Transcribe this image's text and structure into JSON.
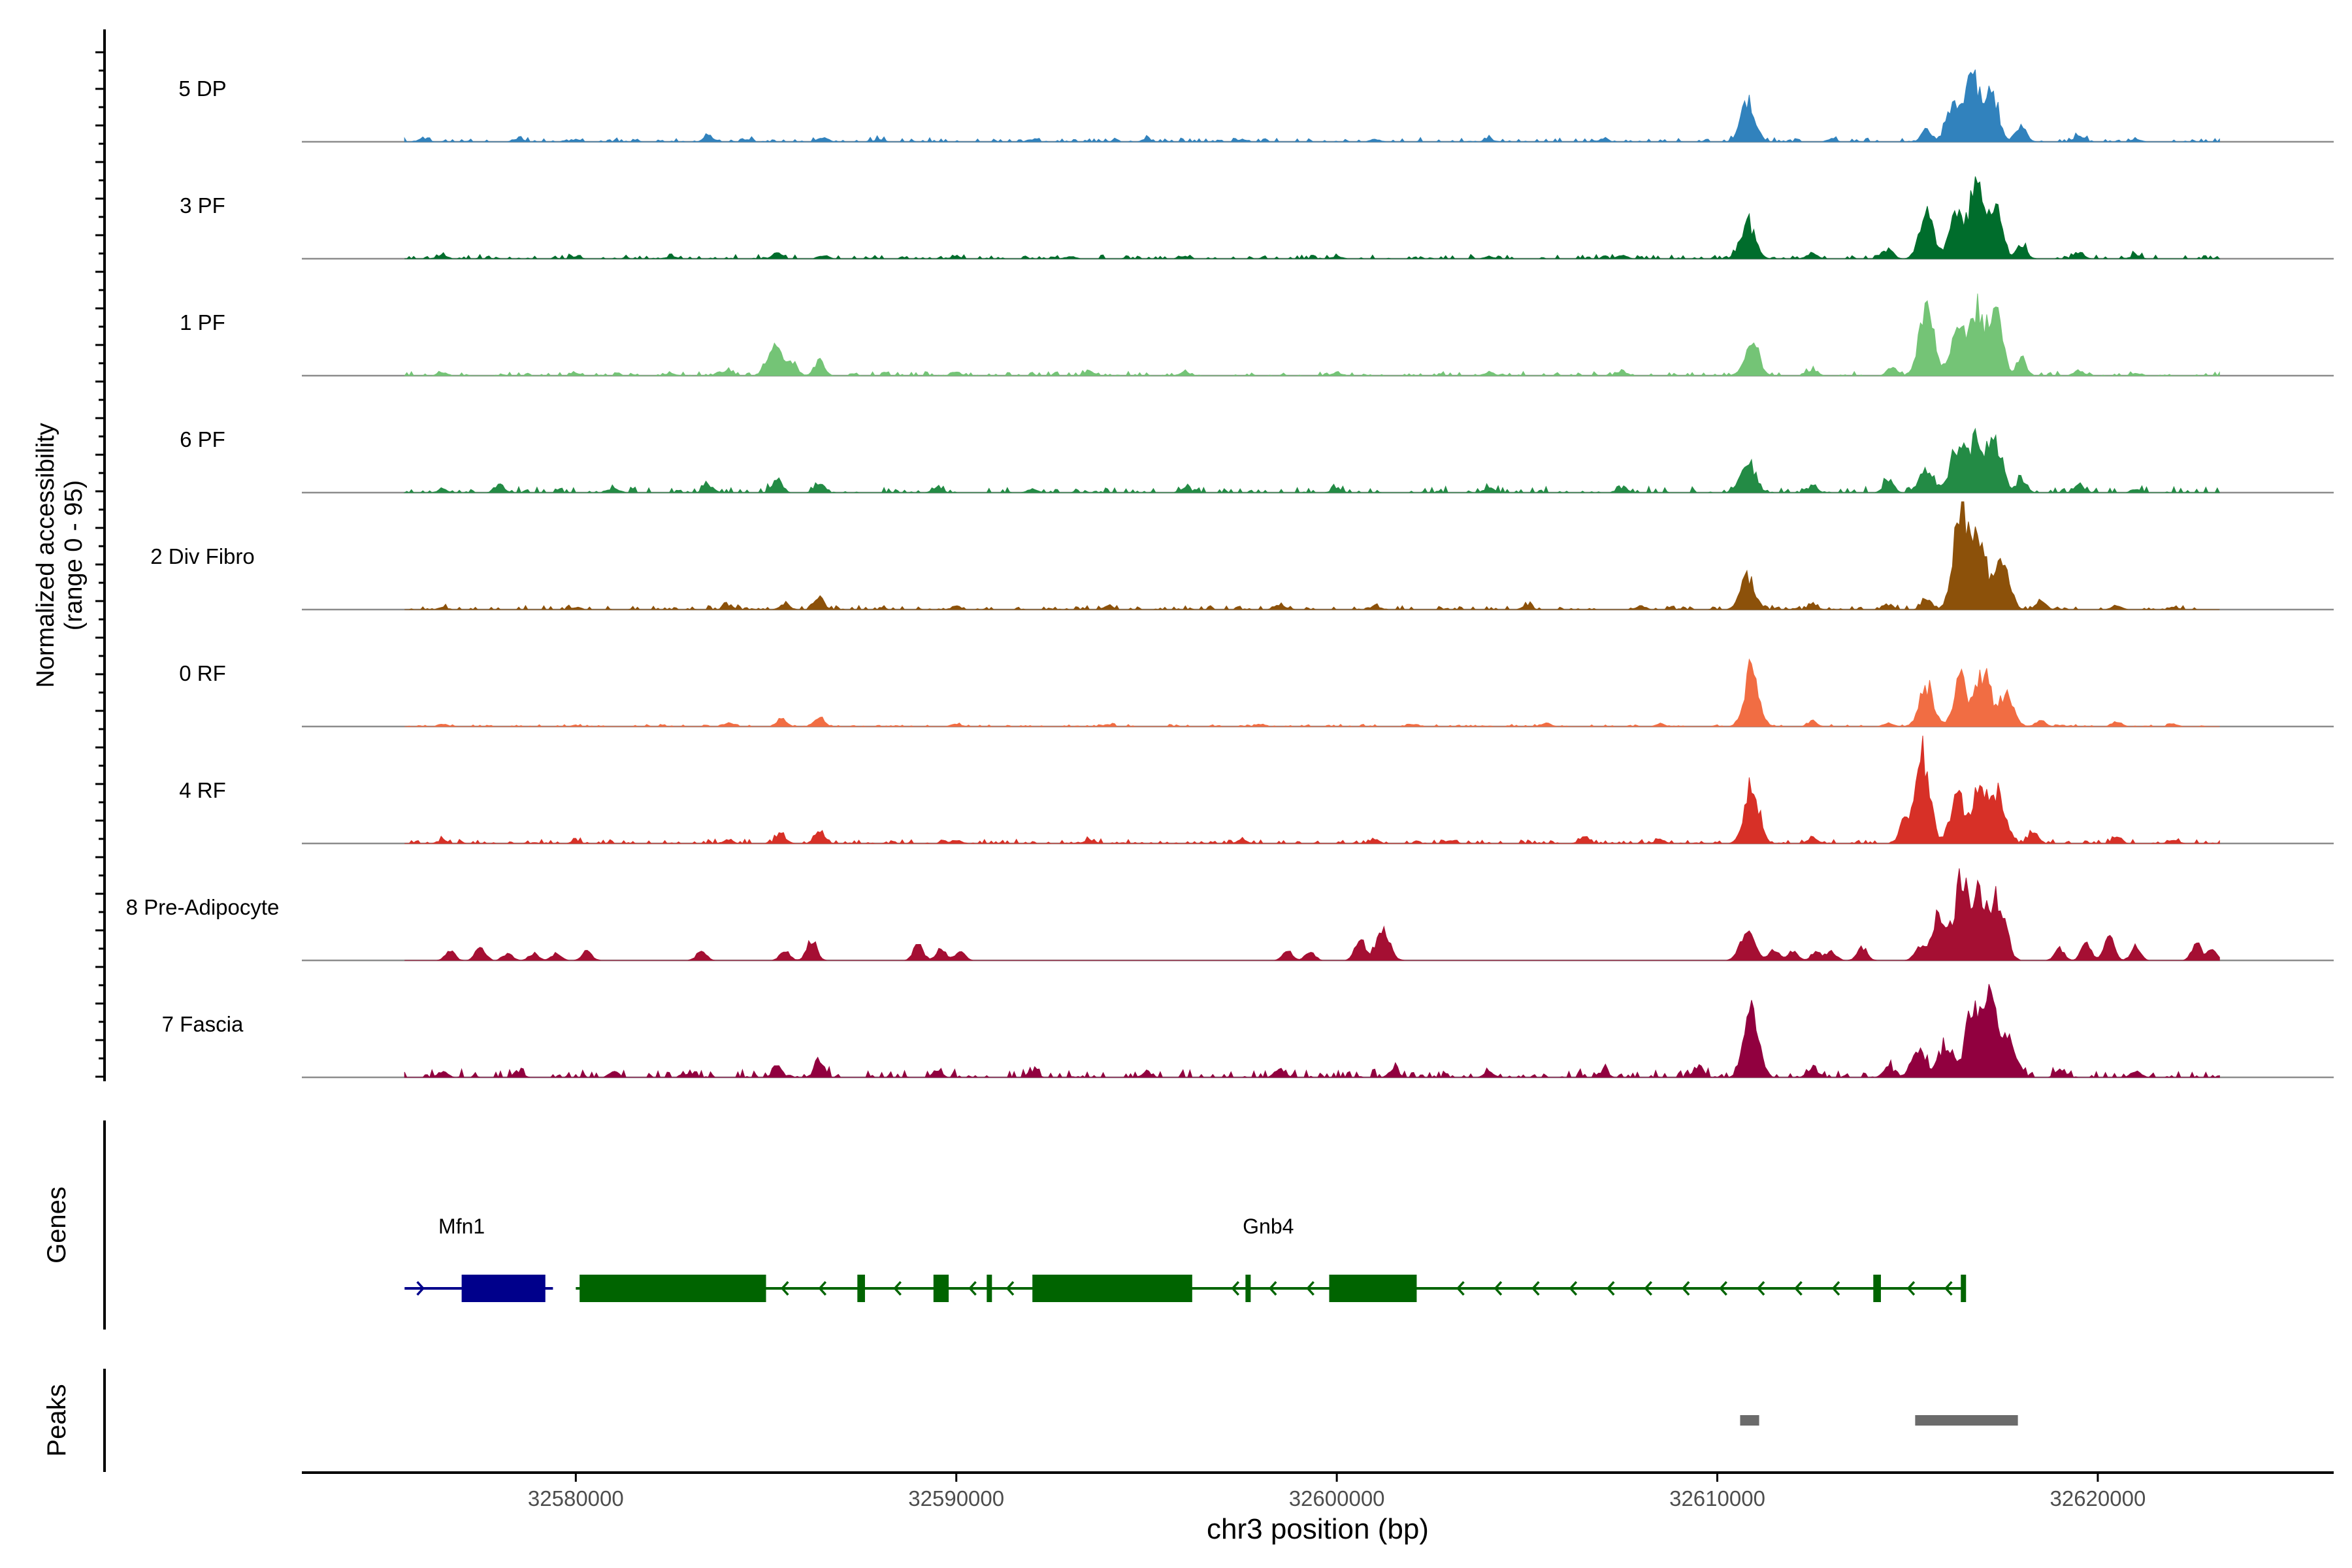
{
  "chart_data": {
    "type": "area",
    "title": "",
    "chromosome": "chr3",
    "xlabel": "chr3 position (bp)",
    "ylabel_line1": "Normalized accessibility",
    "ylabel_line2": "(range 0 - 95)",
    "y_range": [
      0,
      95
    ],
    "x_range": [
      32572800,
      32626200
    ],
    "x_ticks": [
      32580000,
      32590000,
      32600000,
      32610000,
      32620000
    ],
    "x_tick_labels": [
      "32580000",
      "32590000",
      "32600000",
      "32610000",
      "32620000"
    ],
    "series": [
      {
        "name": "5 DP",
        "color": "#3182bd",
        "baseline": 2,
        "peaks": [
          [
            32576000,
            2
          ],
          [
            32578500,
            3
          ],
          [
            32580000,
            2
          ],
          [
            32583500,
            5
          ],
          [
            32584500,
            2
          ],
          [
            32586500,
            4
          ],
          [
            32588000,
            2
          ],
          [
            32592000,
            2
          ],
          [
            32595000,
            2
          ],
          [
            32597500,
            2
          ],
          [
            32601000,
            2
          ],
          [
            32604000,
            2
          ],
          [
            32607000,
            2
          ],
          [
            32610800,
            35
          ],
          [
            32613000,
            2
          ],
          [
            32615500,
            10
          ],
          [
            32616200,
            30
          ],
          [
            32616700,
            55
          ],
          [
            32617200,
            45
          ],
          [
            32618000,
            15
          ],
          [
            32619500,
            5
          ],
          [
            32621000,
            2
          ]
        ]
      },
      {
        "name": "3 PF",
        "color": "#006d2c",
        "baseline": 2,
        "peaks": [
          [
            32576500,
            3
          ],
          [
            32580000,
            2
          ],
          [
            32582500,
            2
          ],
          [
            32585300,
            5
          ],
          [
            32586500,
            3
          ],
          [
            32590000,
            2
          ],
          [
            32593000,
            2
          ],
          [
            32596000,
            2
          ],
          [
            32600000,
            2
          ],
          [
            32604000,
            2
          ],
          [
            32607500,
            3
          ],
          [
            32610800,
            32
          ],
          [
            32612500,
            5
          ],
          [
            32614500,
            8
          ],
          [
            32615500,
            38
          ],
          [
            32616300,
            40
          ],
          [
            32616800,
            58
          ],
          [
            32617300,
            45
          ],
          [
            32618000,
            12
          ],
          [
            32619500,
            5
          ],
          [
            32621000,
            3
          ]
        ]
      },
      {
        "name": "1 PF",
        "color": "#74c476",
        "baseline": 2,
        "peaks": [
          [
            32576500,
            3
          ],
          [
            32580000,
            2
          ],
          [
            32582500,
            2
          ],
          [
            32584000,
            5
          ],
          [
            32585200,
            25
          ],
          [
            32585700,
            12
          ],
          [
            32586400,
            13
          ],
          [
            32590000,
            3
          ],
          [
            32593500,
            4
          ],
          [
            32596000,
            3
          ],
          [
            32600000,
            2
          ],
          [
            32604000,
            3
          ],
          [
            32607500,
            4
          ],
          [
            32610900,
            30
          ],
          [
            32612500,
            5
          ],
          [
            32614600,
            7
          ],
          [
            32615500,
            60
          ],
          [
            32616300,
            40
          ],
          [
            32616800,
            55
          ],
          [
            32617300,
            55
          ],
          [
            32618000,
            15
          ],
          [
            32619500,
            4
          ],
          [
            32621000,
            2
          ]
        ]
      },
      {
        "name": "6 PF",
        "color": "#238b45",
        "baseline": 3,
        "peaks": [
          [
            32576500,
            3
          ],
          [
            32578000,
            5
          ],
          [
            32581000,
            4
          ],
          [
            32583500,
            6
          ],
          [
            32585300,
            12
          ],
          [
            32586400,
            8
          ],
          [
            32589500,
            4
          ],
          [
            32592000,
            3
          ],
          [
            32596000,
            4
          ],
          [
            32600000,
            3
          ],
          [
            32604000,
            4
          ],
          [
            32607500,
            4
          ],
          [
            32610800,
            28
          ],
          [
            32612500,
            5
          ],
          [
            32614500,
            12
          ],
          [
            32615500,
            22
          ],
          [
            32616300,
            40
          ],
          [
            32616800,
            48
          ],
          [
            32617300,
            45
          ],
          [
            32618000,
            12
          ],
          [
            32619500,
            6
          ],
          [
            32621000,
            3
          ]
        ]
      },
      {
        "name": "2 Div Fibro",
        "color": "#8c510a",
        "baseline": 2,
        "peaks": [
          [
            32576500,
            2
          ],
          [
            32580000,
            2
          ],
          [
            32584000,
            3
          ],
          [
            32585500,
            5
          ],
          [
            32586400,
            10
          ],
          [
            32590000,
            3
          ],
          [
            32594000,
            3
          ],
          [
            32598500,
            4
          ],
          [
            32601000,
            3
          ],
          [
            32605000,
            3
          ],
          [
            32608000,
            3
          ],
          [
            32610800,
            28
          ],
          [
            32612500,
            4
          ],
          [
            32614500,
            4
          ],
          [
            32615500,
            8
          ],
          [
            32616400,
            88
          ],
          [
            32616900,
            60
          ],
          [
            32617500,
            40
          ],
          [
            32618500,
            8
          ],
          [
            32620500,
            3
          ],
          [
            32622000,
            2
          ]
        ]
      },
      {
        "name": "0 RF",
        "color": "#f16d43",
        "baseline": 1,
        "peaks": [
          [
            32576500,
            2
          ],
          [
            32580000,
            1
          ],
          [
            32584000,
            3
          ],
          [
            32585400,
            7
          ],
          [
            32586400,
            8
          ],
          [
            32590000,
            2
          ],
          [
            32594000,
            2
          ],
          [
            32598000,
            2
          ],
          [
            32602000,
            2
          ],
          [
            32605500,
            3
          ],
          [
            32608500,
            2
          ],
          [
            32610900,
            50
          ],
          [
            32612500,
            4
          ],
          [
            32614500,
            3
          ],
          [
            32615500,
            35
          ],
          [
            32616400,
            40
          ],
          [
            32617000,
            48
          ],
          [
            32617600,
            30
          ],
          [
            32618500,
            6
          ],
          [
            32620500,
            4
          ],
          [
            32622000,
            2
          ]
        ]
      },
      {
        "name": "4 RF",
        "color": "#d73027",
        "baseline": 2,
        "peaks": [
          [
            32576500,
            3
          ],
          [
            32580000,
            2
          ],
          [
            32584000,
            3
          ],
          [
            32585400,
            8
          ],
          [
            32586400,
            12
          ],
          [
            32590000,
            3
          ],
          [
            32593500,
            3
          ],
          [
            32597500,
            3
          ],
          [
            32601000,
            3
          ],
          [
            32603000,
            3
          ],
          [
            32606500,
            6
          ],
          [
            32608500,
            3
          ],
          [
            32610900,
            50
          ],
          [
            32612500,
            5
          ],
          [
            32614900,
            18
          ],
          [
            32615400,
            80
          ],
          [
            32616300,
            40
          ],
          [
            32616900,
            50
          ],
          [
            32617400,
            45
          ],
          [
            32618300,
            10
          ],
          [
            32620500,
            5
          ],
          [
            32622000,
            3
          ]
        ]
      },
      {
        "name": "8 Pre-Adipocyte",
        "color": "#a50f33",
        "baseline": 0,
        "peaks": [
          [
            32576700,
            8
          ],
          [
            32577500,
            12
          ],
          [
            32578200,
            6
          ],
          [
            32578900,
            6
          ],
          [
            32579500,
            6
          ],
          [
            32580300,
            8
          ],
          [
            32583300,
            8
          ],
          [
            32585500,
            8
          ],
          [
            32586200,
            18
          ],
          [
            32589000,
            15
          ],
          [
            32589600,
            10
          ],
          [
            32590100,
            8
          ],
          [
            32598700,
            8
          ],
          [
            32599300,
            8
          ],
          [
            32600600,
            20
          ],
          [
            32601200,
            25
          ],
          [
            32610800,
            25
          ],
          [
            32611500,
            10
          ],
          [
            32612000,
            8
          ],
          [
            32612600,
            8
          ],
          [
            32613000,
            8
          ],
          [
            32613800,
            12
          ],
          [
            32615300,
            10
          ],
          [
            32615800,
            40
          ],
          [
            32616400,
            68
          ],
          [
            32616900,
            60
          ],
          [
            32617400,
            55
          ],
          [
            32619000,
            10
          ],
          [
            32619700,
            15
          ],
          [
            32620300,
            20
          ],
          [
            32621000,
            12
          ],
          [
            32622600,
            15
          ],
          [
            32623000,
            8
          ]
        ]
      },
      {
        "name": "7 Fascia",
        "color": "#91003f",
        "baseline": 4,
        "peaks": [
          [
            32576500,
            5
          ],
          [
            32578500,
            4
          ],
          [
            32581000,
            5
          ],
          [
            32583000,
            4
          ],
          [
            32585300,
            8
          ],
          [
            32586400,
            14
          ],
          [
            32589500,
            5
          ],
          [
            32592000,
            5
          ],
          [
            32595000,
            4
          ],
          [
            32598500,
            7
          ],
          [
            32601500,
            6
          ],
          [
            32604000,
            5
          ],
          [
            32607000,
            5
          ],
          [
            32609500,
            10
          ],
          [
            32610900,
            60
          ],
          [
            32612500,
            8
          ],
          [
            32614500,
            10
          ],
          [
            32615300,
            25
          ],
          [
            32616000,
            30
          ],
          [
            32616700,
            55
          ],
          [
            32617200,
            70
          ],
          [
            32617700,
            30
          ],
          [
            32619000,
            6
          ],
          [
            32621000,
            5
          ]
        ]
      }
    ],
    "genes_label": "Genes",
    "genes": [
      {
        "name": "Mfn1",
        "color": "#00008b",
        "strand": "+",
        "start": 32575500,
        "end": 32579400,
        "label_pos": 32577000,
        "exons": [
          [
            32577000,
            32579200
          ]
        ]
      },
      {
        "name": "Gnb4",
        "color": "#006400",
        "strand": "-",
        "start": 32580000,
        "end": 32616500,
        "label_pos": 32598200,
        "exons": [
          [
            32580100,
            32585000
          ],
          [
            32587400,
            32587600
          ],
          [
            32589400,
            32589800
          ],
          [
            32590800,
            32590900
          ],
          [
            32592000,
            32596200
          ],
          [
            32597600,
            32597700
          ],
          [
            32599800,
            32602100
          ],
          [
            32614100,
            32614300
          ],
          [
            32616400,
            32616500
          ]
        ]
      }
    ],
    "peaks_label": "Peaks",
    "peak_regions": [
      [
        32610600,
        32611100
      ],
      [
        32615200,
        32617900
      ]
    ],
    "peak_color": "#6b6b6b"
  }
}
